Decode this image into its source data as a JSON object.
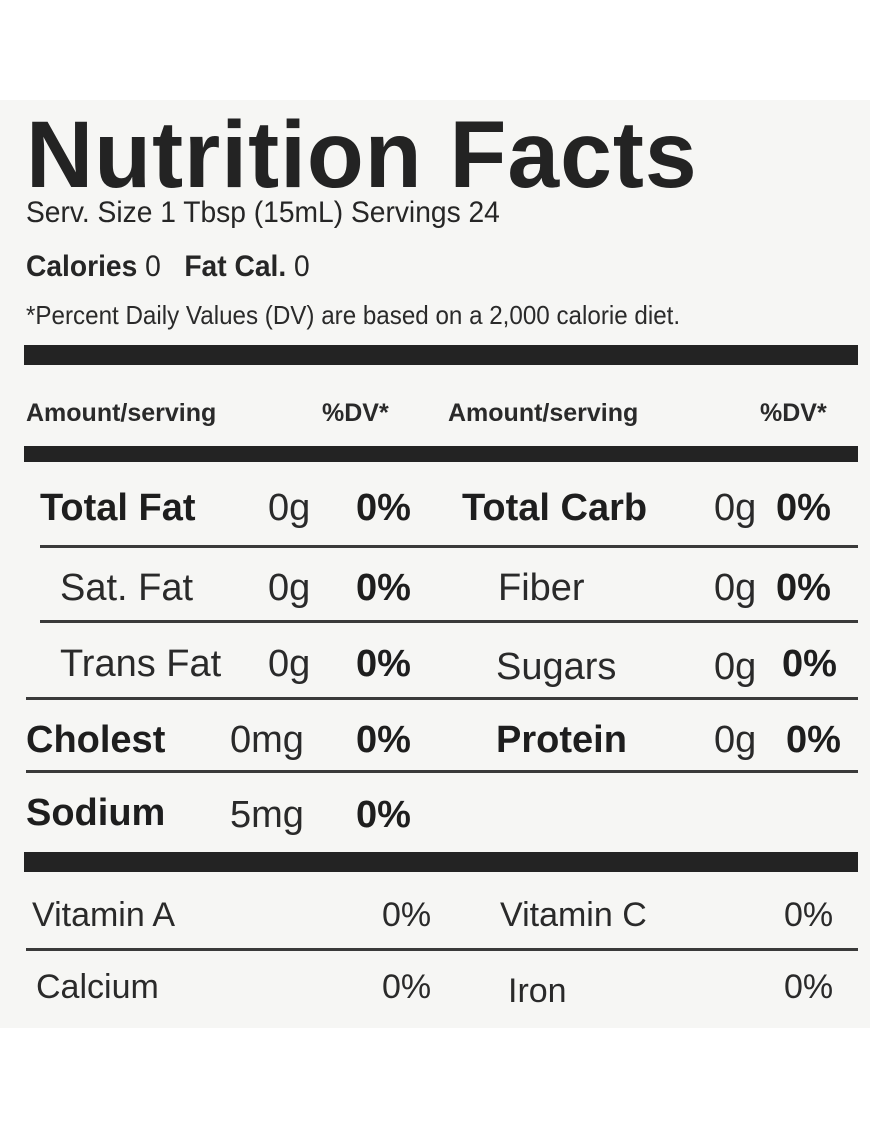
{
  "title": "Nutrition Facts",
  "serving": "Serv. Size 1 Tbsp (15mL) Servings 24",
  "calories_label": "Calories",
  "calories_value": "0",
  "fat_cal_label": "Fat Cal.",
  "fat_cal_value": "0",
  "footnote": "*Percent Daily Values (DV) are based on a 2,000 calorie diet.",
  "header": {
    "amount_left": "Amount/serving",
    "dv_left": "%DV*",
    "amount_right": "Amount/serving",
    "dv_right": "%DV*"
  },
  "left_nutrients": [
    {
      "name": "Total Fat",
      "amount": "0g",
      "dv": "0%"
    },
    {
      "name": "Sat. Fat",
      "amount": "0g",
      "dv": "0%"
    },
    {
      "name": "Trans Fat",
      "amount": "0g",
      "dv": "0%"
    },
    {
      "name": "Cholest",
      "amount": "0mg",
      "dv": "0%"
    },
    {
      "name": "Sodium",
      "amount": "5mg",
      "dv": "0%"
    }
  ],
  "right_nutrients": [
    {
      "name": "Total Carb",
      "amount": "0g",
      "dv": "0%"
    },
    {
      "name": "Fiber",
      "amount": "0g",
      "dv": "0%"
    },
    {
      "name": "Sugars",
      "amount": "0g",
      "dv": "0%"
    },
    {
      "name": "Protein",
      "amount": "0g",
      "dv": "0%"
    }
  ],
  "vitamins": [
    {
      "name": "Vitamin A",
      "dv": "0%"
    },
    {
      "name": "Vitamin C",
      "dv": "0%"
    },
    {
      "name": "Calcium",
      "dv": "0%"
    },
    {
      "name": "Iron",
      "dv": "0%"
    }
  ]
}
